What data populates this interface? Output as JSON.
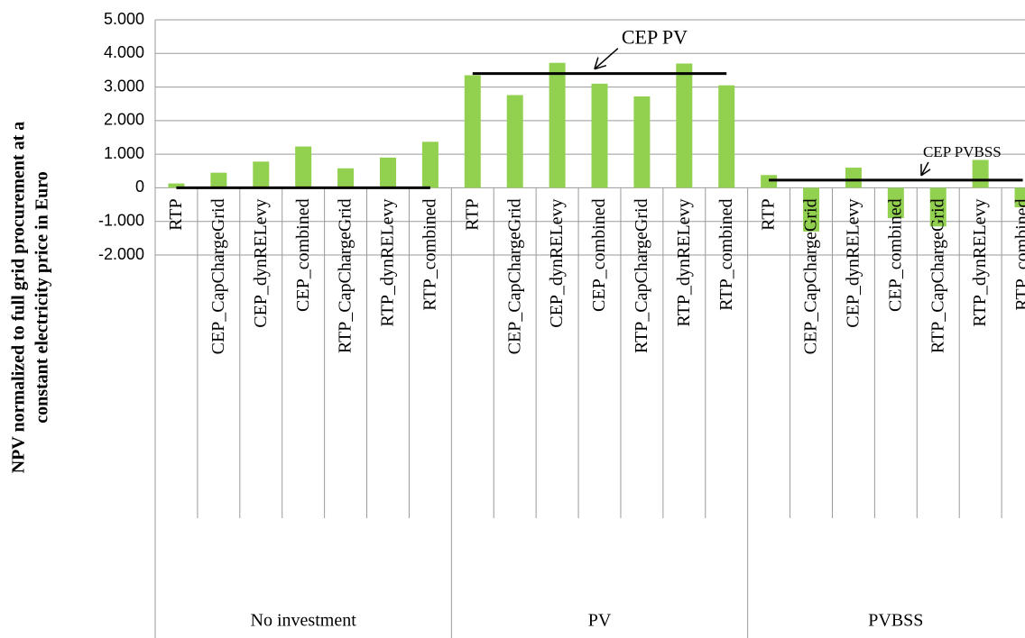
{
  "chart_data": {
    "type": "bar",
    "ylabel": [
      "NPV normalized to full grid procurement at a",
      "constant electricity price in Euro"
    ],
    "groups": [
      "No investment",
      "PV",
      "PVBSS"
    ],
    "categories": [
      "RTP",
      "CEP_CapChargeGrid",
      "CEP_dynRELevy",
      "CEP_combined",
      "RTP_CapChargeGrid",
      "RTP_dynRELevy",
      "RTP_combined",
      "RTP",
      "CEP_CapChargeGrid",
      "CEP_dynRELevy",
      "CEP_combined",
      "RTP_CapChargeGrid",
      "RTP_dynRELevy",
      "RTP_combined",
      "RTP",
      "CEP_CapChargeGrid",
      "CEP_dynRELevy",
      "CEP_combined",
      "RTP_CapChargeGrid",
      "RTP_dynRELevy",
      "RTP_combined"
    ],
    "values": [
      130,
      450,
      780,
      1230,
      580,
      900,
      1370,
      3350,
      2760,
      3720,
      3100,
      2720,
      3700,
      3050,
      380,
      -1300,
      600,
      -900,
      -1150,
      830,
      -580
    ],
    "color": "#92d050",
    "reference_lines": [
      {
        "value": 0
      },
      {
        "value": 3400,
        "label": "CEP PV"
      },
      {
        "value": 230,
        "label": "CEP PVBSS"
      }
    ],
    "ylim": [
      -2000,
      5000
    ],
    "yticks": [
      {
        "value": -2000,
        "label": "-2.000"
      },
      {
        "value": -1000,
        "label": "-1.000"
      },
      0,
      {
        "value": 1000,
        "label": "1.000"
      },
      {
        "value": 2000,
        "label": "2.000"
      },
      {
        "value": 3000,
        "label": "3.000"
      },
      {
        "value": 4000,
        "label": "4.000"
      },
      {
        "value": 5000,
        "label": "5.000"
      }
    ],
    "grid": true
  }
}
